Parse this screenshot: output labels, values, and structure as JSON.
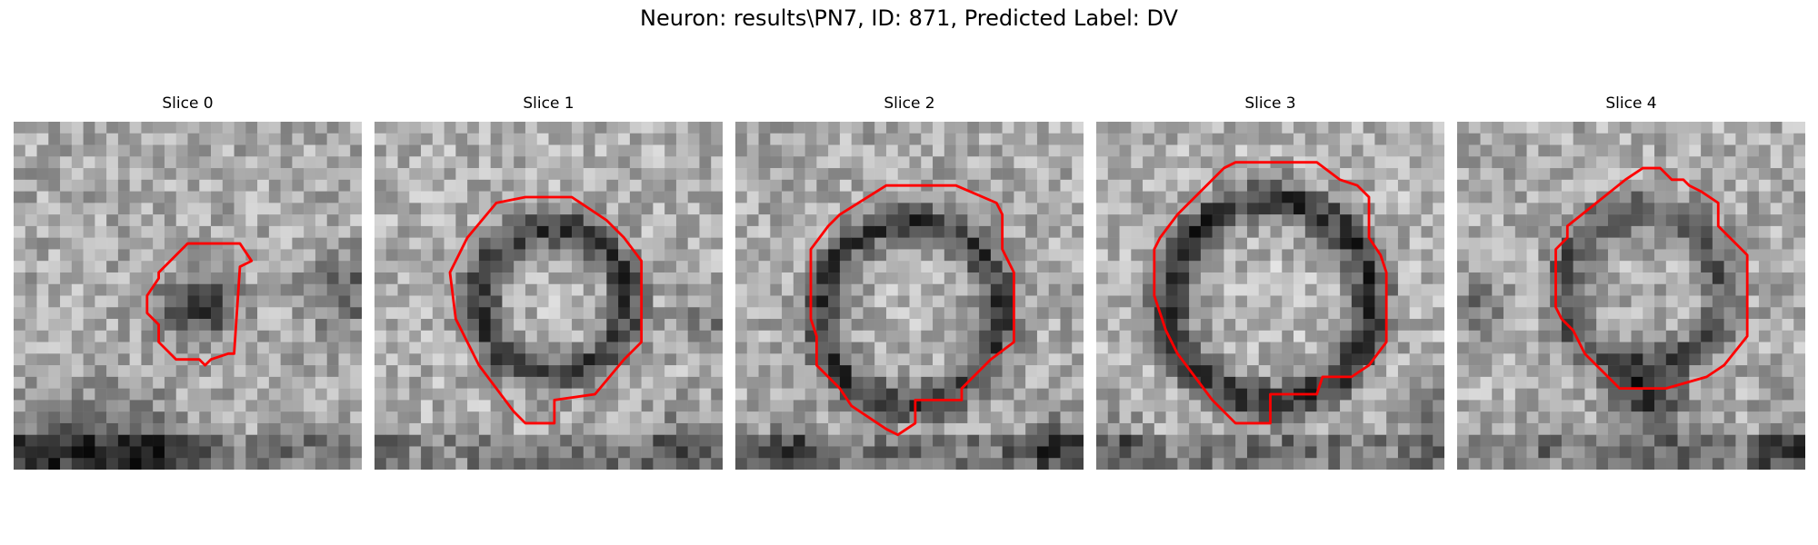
{
  "figure": {
    "title": "Neuron: results\\PN7, ID: 871, Predicted Label: DV"
  },
  "panels": [
    {
      "title": "Slice 0",
      "image": "grayscale-micrograph",
      "contour_color": "#ff0000"
    },
    {
      "title": "Slice 1",
      "image": "grayscale-micrograph",
      "contour_color": "#ff0000"
    },
    {
      "title": "Slice 2",
      "image": "grayscale-micrograph",
      "contour_color": "#ff0000"
    },
    {
      "title": "Slice 3",
      "image": "grayscale-micrograph",
      "contour_color": "#ff0000"
    },
    {
      "title": "Slice 4",
      "image": "grayscale-micrograph",
      "contour_color": "#ff0000"
    }
  ],
  "colors": {
    "contour": "#ff0000",
    "background": "#ffffff"
  }
}
